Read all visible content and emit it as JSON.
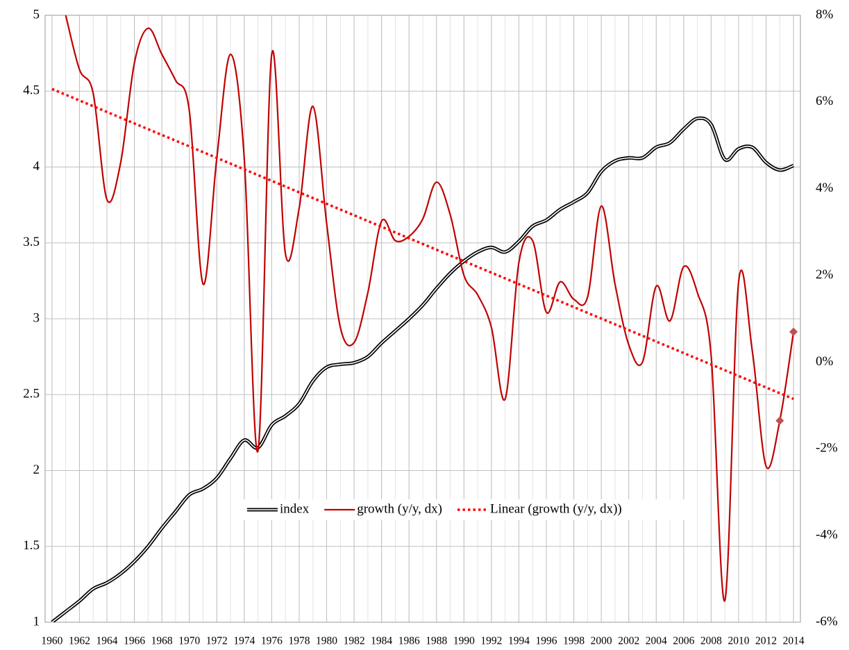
{
  "chart_data": {
    "type": "line",
    "x": [
      1960,
      1961,
      1962,
      1963,
      1964,
      1965,
      1966,
      1967,
      1968,
      1969,
      1970,
      1971,
      1972,
      1973,
      1974,
      1975,
      1976,
      1977,
      1978,
      1979,
      1980,
      1981,
      1982,
      1983,
      1984,
      1985,
      1986,
      1987,
      1988,
      1989,
      1990,
      1991,
      1992,
      1993,
      1994,
      1995,
      1996,
      1997,
      1998,
      1999,
      2000,
      2001,
      2002,
      2003,
      2004,
      2005,
      2006,
      2007,
      2008,
      2009,
      2010,
      2011,
      2012,
      2013,
      2014
    ],
    "series": [
      {
        "name": "index",
        "color": "#000000",
        "style": "double",
        "values": [
          1.0,
          1.07,
          1.14,
          1.22,
          1.26,
          1.32,
          1.4,
          1.5,
          1.62,
          1.73,
          1.84,
          1.88,
          1.95,
          2.08,
          2.2,
          2.15,
          2.3,
          2.36,
          2.44,
          2.59,
          2.68,
          2.7,
          2.71,
          2.75,
          2.84,
          2.92,
          3.0,
          3.09,
          3.2,
          3.3,
          3.38,
          3.44,
          3.47,
          3.44,
          3.51,
          3.61,
          3.65,
          3.72,
          3.77,
          3.83,
          3.97,
          4.04,
          4.06,
          4.06,
          4.13,
          4.16,
          4.25,
          4.32,
          4.28,
          4.05,
          4.12,
          4.13,
          4.03,
          3.98,
          4.01
        ]
      },
      {
        "name": "growth (y/y, dx)",
        "color": "#c00000",
        "axis": "y2",
        "style": "solid",
        "markers_at": [
          2013,
          2014
        ],
        "marker_color": "#c0504d",
        "values": [
          null,
          8.0,
          6.75,
          6.2,
          3.75,
          4.6,
          6.9,
          7.7,
          7.1,
          6.5,
          5.8,
          1.8,
          4.7,
          7.1,
          4.7,
          -2.05,
          7.1,
          2.5,
          3.55,
          5.9,
          3.2,
          0.8,
          0.45,
          1.6,
          3.25,
          2.8,
          2.9,
          3.3,
          4.15,
          3.4,
          2.0,
          1.55,
          0.8,
          -0.85,
          2.3,
          2.8,
          1.15,
          1.85,
          1.45,
          1.5,
          3.6,
          1.8,
          0.4,
          0.0,
          1.75,
          0.95,
          2.2,
          1.6,
          0.15,
          -5.5,
          1.85,
          0.25,
          -2.4,
          -1.35,
          0.7
        ]
      }
    ],
    "trendline": {
      "name": "Linear (growth (y/y, dx))",
      "color": "#ff0000",
      "axis": "y2",
      "style": "dotted",
      "x": [
        1960,
        2014
      ],
      "values": [
        6.3,
        -0.85
      ]
    },
    "xlim": [
      1959.5,
      2014.5
    ],
    "xticks": [
      1960,
      1962,
      1964,
      1966,
      1968,
      1970,
      1972,
      1974,
      1976,
      1978,
      1980,
      1982,
      1984,
      1986,
      1988,
      1990,
      1992,
      1994,
      1996,
      1998,
      2000,
      2002,
      2004,
      2006,
      2008,
      2010,
      2012,
      2014
    ],
    "ylim": [
      1,
      5
    ],
    "yticks": [
      1,
      1.5,
      2,
      2.5,
      3,
      3.5,
      4,
      4.5,
      5
    ],
    "y2lim": [
      -6,
      8
    ],
    "y2ticks": [
      {
        "value": -6,
        "label": "-6%"
      },
      {
        "value": -4,
        "label": "-4%"
      },
      {
        "value": -2,
        "label": "-2%"
      },
      {
        "value": 0,
        "label": "0%"
      },
      {
        "value": 2,
        "label": "2%"
      },
      {
        "value": 4,
        "label": "4%"
      },
      {
        "value": 6,
        "label": "6%"
      },
      {
        "value": 8,
        "label": "8%"
      }
    ],
    "grid": true,
    "legend": "center"
  }
}
